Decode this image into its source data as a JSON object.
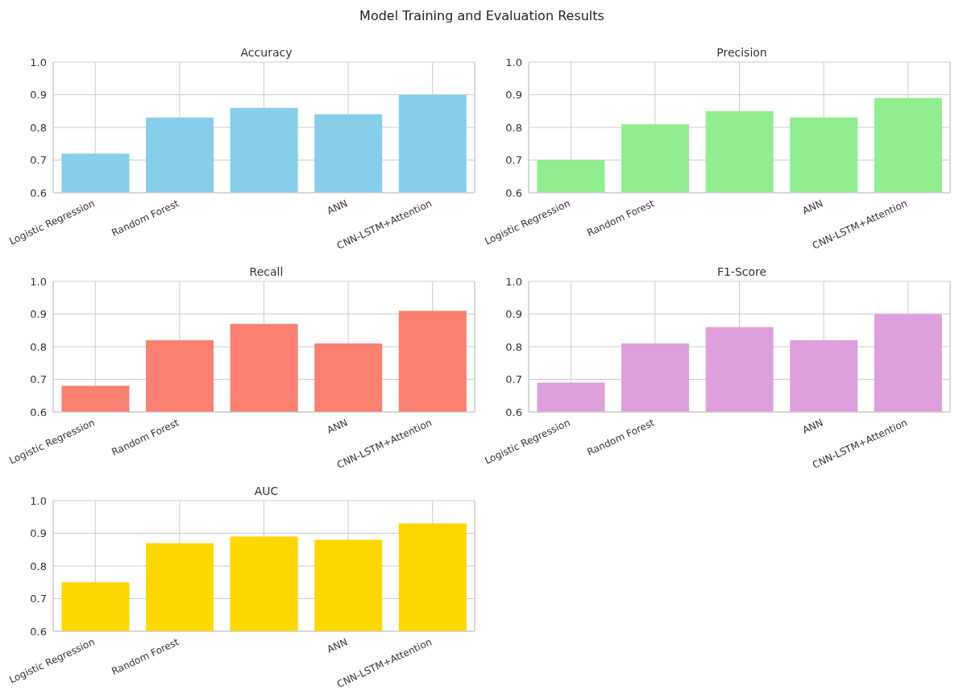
{
  "chart_data": [
    {
      "type": "bar",
      "title": "Accuracy",
      "annotations": [
        "Model Training and Evaluation Results"
      ],
      "categories": [
        "Logistic Regression",
        "Random Forest",
        null,
        "ANN",
        "CNN-LSTM+Attention"
      ],
      "values": [
        0.72,
        0.83,
        0.86,
        0.84,
        0.9
      ],
      "color": "#87ceeb",
      "ylim": [
        0.6,
        1.0
      ],
      "yticks": [
        {
          "value": 0.6,
          "label": "0.6"
        },
        {
          "value": 0.7,
          "label": "0.7"
        },
        {
          "value": 0.8,
          "label": "0.8"
        },
        {
          "value": 0.9,
          "label": "0.9"
        },
        {
          "value": 1.0,
          "label": "1.0"
        }
      ],
      "grid": true
    },
    {
      "type": "bar",
      "title": "Precision",
      "categories": [
        "Logistic Regression",
        "Random Forest",
        null,
        "ANN",
        "CNN-LSTM+Attention"
      ],
      "values": [
        0.7,
        0.81,
        0.85,
        0.83,
        0.89
      ],
      "color": "#90ee90",
      "ylim": [
        0.6,
        1.0
      ],
      "yticks": [
        {
          "value": 0.6,
          "label": "0.6"
        },
        {
          "value": 0.7,
          "label": "0.7"
        },
        {
          "value": 0.8,
          "label": "0.8"
        },
        {
          "value": 0.9,
          "label": "0.9"
        },
        {
          "value": 1.0,
          "label": "1.0"
        }
      ],
      "grid": true
    },
    {
      "type": "bar",
      "title": "Recall",
      "categories": [
        "Logistic Regression",
        "Random Forest",
        null,
        "ANN",
        "CNN-LSTM+Attention"
      ],
      "values": [
        0.68,
        0.82,
        0.87,
        0.81,
        0.91
      ],
      "color": "#fa8072",
      "ylim": [
        0.6,
        1.0
      ],
      "yticks": [
        {
          "value": 0.6,
          "label": "0.6"
        },
        {
          "value": 0.7,
          "label": "0.7"
        },
        {
          "value": 0.8,
          "label": "0.8"
        },
        {
          "value": 0.9,
          "label": "0.9"
        },
        {
          "value": 1.0,
          "label": "1.0"
        }
      ],
      "grid": true
    },
    {
      "type": "bar",
      "title": "F1-Score",
      "categories": [
        "Logistic Regression",
        "Random Forest",
        null,
        "ANN",
        "CNN-LSTM+Attention"
      ],
      "values": [
        0.69,
        0.81,
        0.86,
        0.82,
        0.9
      ],
      "color": "#dda0dd",
      "ylim": [
        0.6,
        1.0
      ],
      "yticks": [
        {
          "value": 0.6,
          "label": "0.6"
        },
        {
          "value": 0.7,
          "label": "0.7"
        },
        {
          "value": 0.8,
          "label": "0.8"
        },
        {
          "value": 0.9,
          "label": "0.9"
        },
        {
          "value": 1.0,
          "label": "1.0"
        }
      ],
      "grid": true
    },
    {
      "type": "bar",
      "title": "AUC",
      "categories": [
        "Logistic Regression",
        "Random Forest",
        null,
        "ANN",
        "CNN-LSTM+Attention"
      ],
      "values": [
        0.75,
        0.87,
        0.89,
        0.88,
        0.93
      ],
      "color": "#ffd700",
      "ylim": [
        0.6,
        1.0
      ],
      "yticks": [
        {
          "value": 0.6,
          "label": "0.6"
        },
        {
          "value": 0.7,
          "label": "0.7"
        },
        {
          "value": 0.8,
          "label": "0.8"
        },
        {
          "value": 0.9,
          "label": "0.9"
        },
        {
          "value": 1.0,
          "label": "1.0"
        }
      ],
      "grid": true
    }
  ]
}
